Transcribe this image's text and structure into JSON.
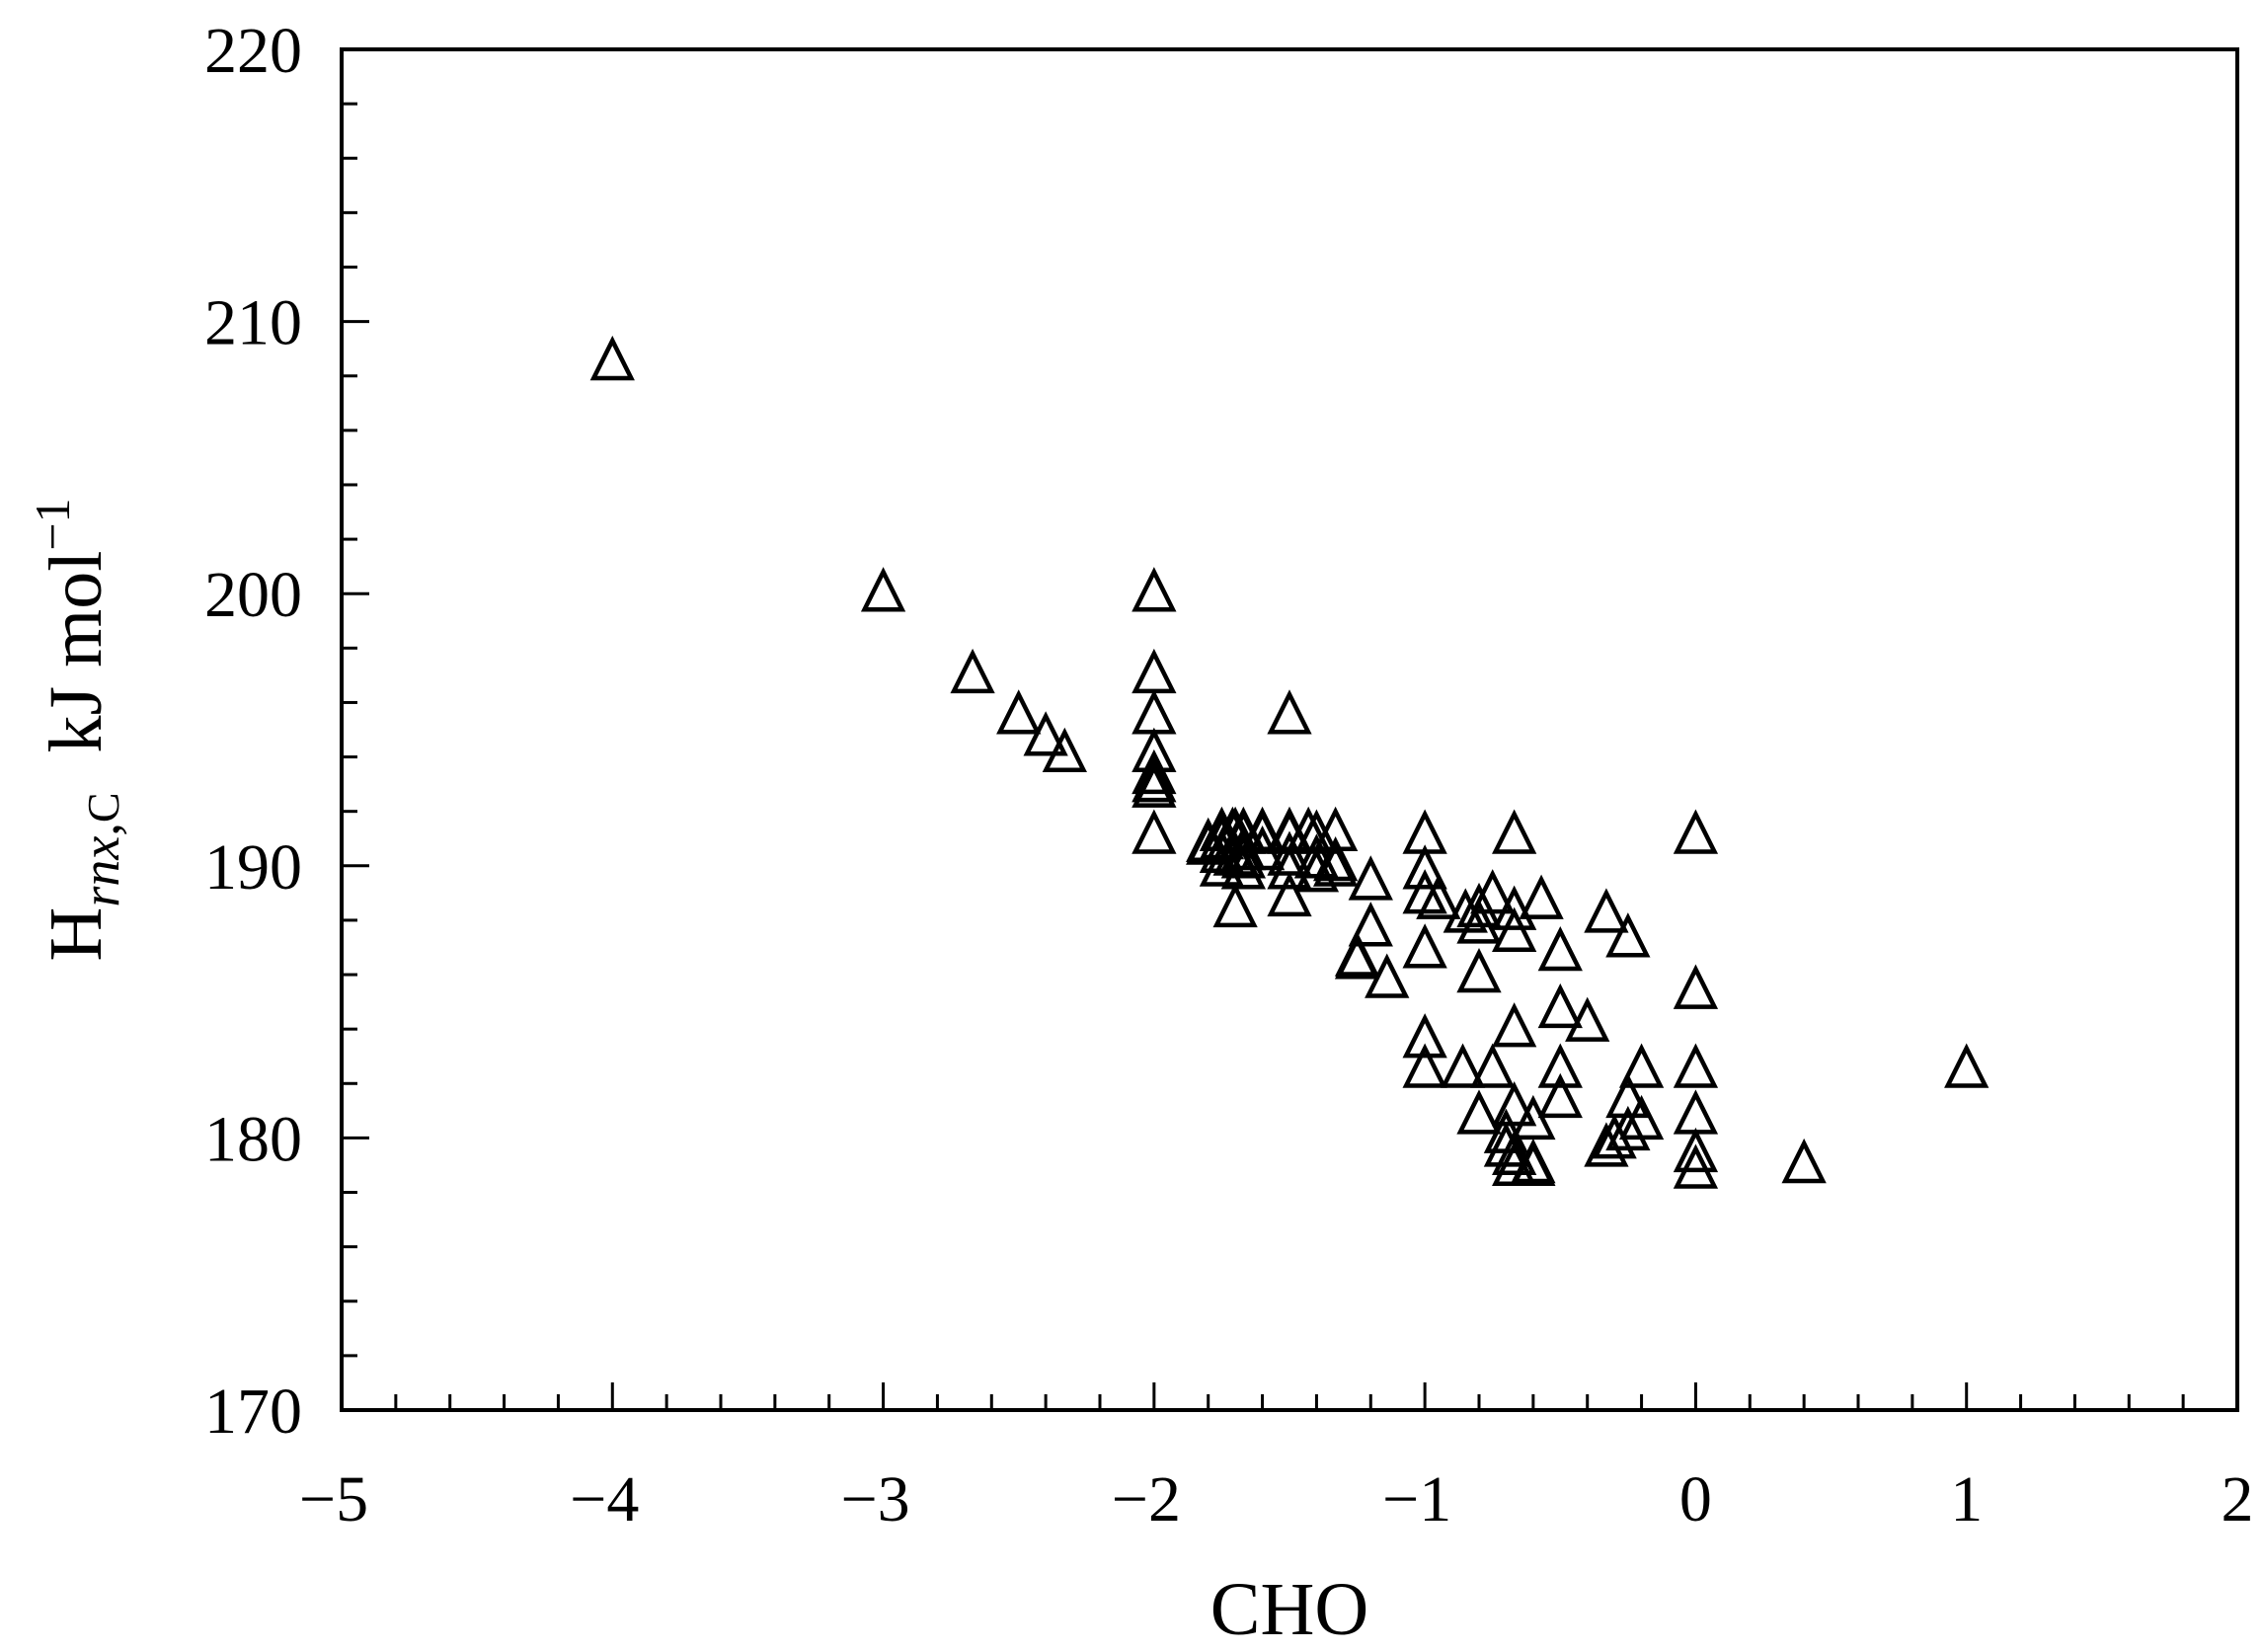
{
  "chart_data": {
    "type": "scatter",
    "title": "",
    "xlabel": "CHO",
    "ylabel": {
      "main": "H",
      "subscript_italic": "rnx",
      "subscript_sep": ",",
      "subscript_plain": "C",
      "unit": "kJ mol",
      "unit_superscript": "−1"
    },
    "xlim": [
      -5,
      2
    ],
    "ylim": [
      170,
      220
    ],
    "xticks": [
      -5,
      -4,
      -3,
      -2,
      -1,
      0,
      1,
      2
    ],
    "xtick_labels": [
      "−5",
      "−4",
      "−3",
      "−2",
      "−1",
      "0",
      "1",
      "2"
    ],
    "yticks": [
      170,
      180,
      190,
      200,
      210,
      220
    ],
    "ytick_labels": [
      "170",
      "180",
      "190",
      "200",
      "210",
      "220"
    ],
    "grid": false,
    "marker": "open-triangle",
    "series": [
      {
        "x": [
          -4,
          -3,
          -2.67,
          -2.5,
          -2.4,
          -2.33,
          -2,
          -2,
          -2,
          -2,
          -2,
          -2,
          -2,
          -2,
          -1.5,
          -1.8,
          -1.75,
          -1.75,
          -1.71,
          -1.7,
          -1.67,
          -1.67,
          -1.6,
          -1.6,
          -1.5,
          -1.5,
          -1.43,
          -1.4,
          -1.33,
          -1.8,
          -1.75,
          -1.7,
          -1.67,
          -1.6,
          -1.5,
          -1.4,
          -1.33,
          -1.75,
          -1.67,
          -1.5,
          -1.4,
          -1.33,
          -1.7,
          -1.67,
          -1.5,
          -1.25,
          -1.2,
          -1.2,
          -1.25,
          -1.14,
          -1,
          -1,
          -1,
          -0.95,
          -0.85,
          -0.8,
          -0.8,
          -0.75,
          -0.67,
          -0.67,
          -0.57,
          -1,
          -0.8,
          -0.67,
          -0.5,
          -0.33,
          -0.25,
          -1,
          -1,
          -0.86,
          -0.75,
          -0.67,
          -0.5,
          -0.5,
          -0.4,
          -0.2,
          -0.8,
          -0.7,
          -0.67,
          -0.6,
          -0.5,
          -0.25,
          -0.2,
          -0.7,
          -0.67,
          -0.6,
          -0.33,
          -0.3,
          -0.25,
          -0.67,
          -0.6,
          0,
          0,
          0,
          0,
          0,
          0,
          0.4,
          1
        ],
        "y": [
          208.5,
          200,
          197,
          195.5,
          194.7,
          194.1,
          200,
          197,
          195.5,
          194.1,
          193.3,
          193,
          192.8,
          191.1,
          195.5,
          190.8,
          191.2,
          190.9,
          191.2,
          191.2,
          191.2,
          191.1,
          191.2,
          191.1,
          191.2,
          191.1,
          191.2,
          191.1,
          191.2,
          190.7,
          190.4,
          190.3,
          190.5,
          190.5,
          190.3,
          190.2,
          190.1,
          189.9,
          189.8,
          189.8,
          189.7,
          189.9,
          188.4,
          190.2,
          188.8,
          186.6,
          187.7,
          189.4,
          186.5,
          185.8,
          191.1,
          189.8,
          188.9,
          188.7,
          188.2,
          187.8,
          188.4,
          188.9,
          188.3,
          187.5,
          188.7,
          186.9,
          186,
          191.1,
          186.8,
          188.2,
          187.3,
          183.6,
          182.5,
          182.5,
          182.5,
          184,
          182.5,
          184.7,
          184.2,
          182.5,
          180.8,
          180.1,
          181.1,
          180.6,
          181.4,
          181.4,
          180.6,
          179.6,
          179.3,
          179,
          179.6,
          179.9,
          180.2,
          178.9,
          178.9,
          191.1,
          185.4,
          182.5,
          180.8,
          179.4,
          178.8,
          179,
          182.5
        ]
      }
    ]
  }
}
